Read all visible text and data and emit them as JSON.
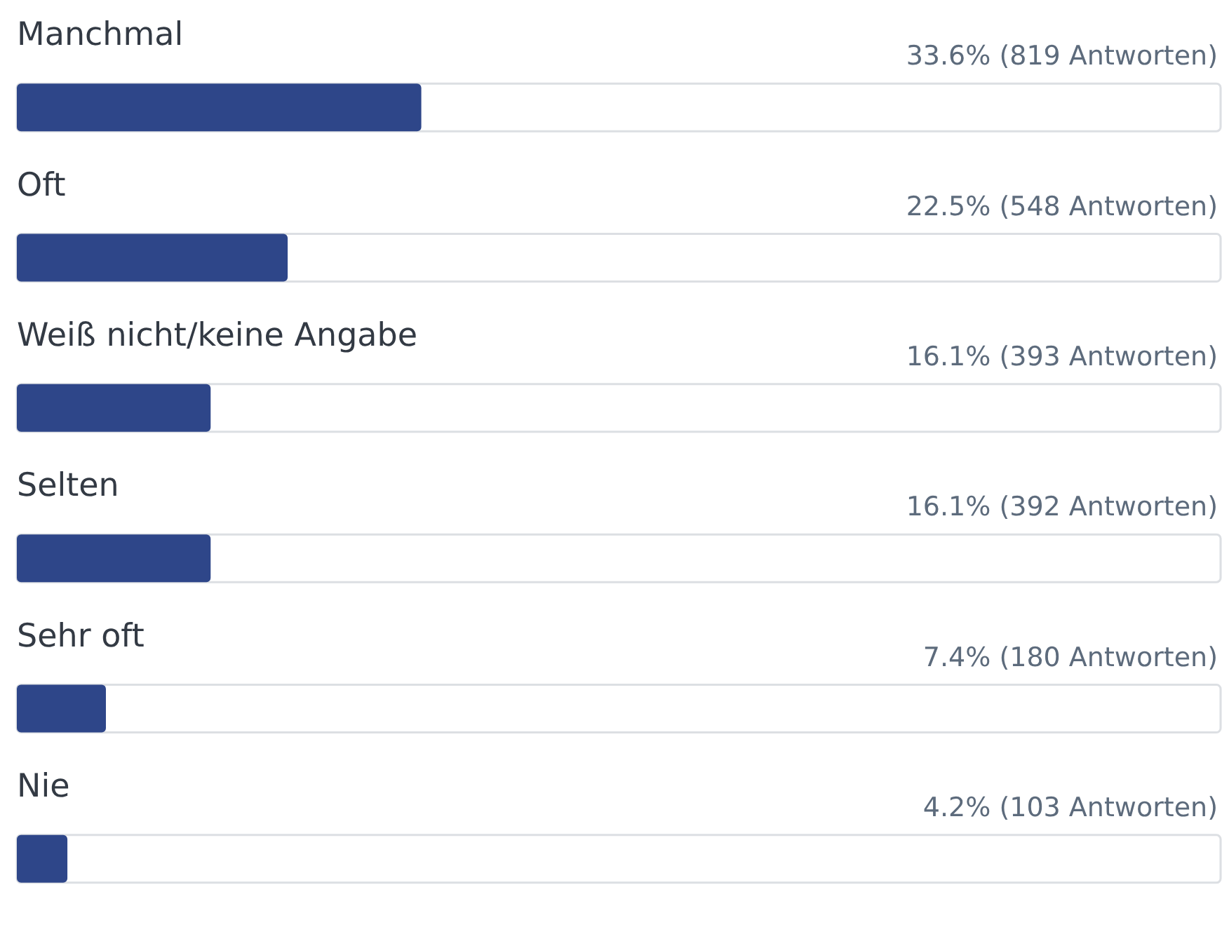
{
  "chart_data": {
    "type": "bar",
    "orientation": "horizontal",
    "categories": [
      "Manchmal",
      "Oft",
      "Weiß nicht/keine Angabe",
      "Selten",
      "Sehr oft",
      "Nie"
    ],
    "values": [
      33.6,
      22.5,
      16.1,
      16.1,
      7.4,
      4.2
    ],
    "value_labels": [
      "33.6% (819 Antworten)",
      "22.5% (548 Antworten)",
      "16.1% (393 Antworten)",
      "16.1% (392 Antworten)",
      "7.4% (180 Antworten)",
      "4.2% (103 Antworten)"
    ],
    "color": "#2e4689",
    "xlim": [
      0,
      100
    ],
    "tick_labels": "y",
    "grid": false
  }
}
